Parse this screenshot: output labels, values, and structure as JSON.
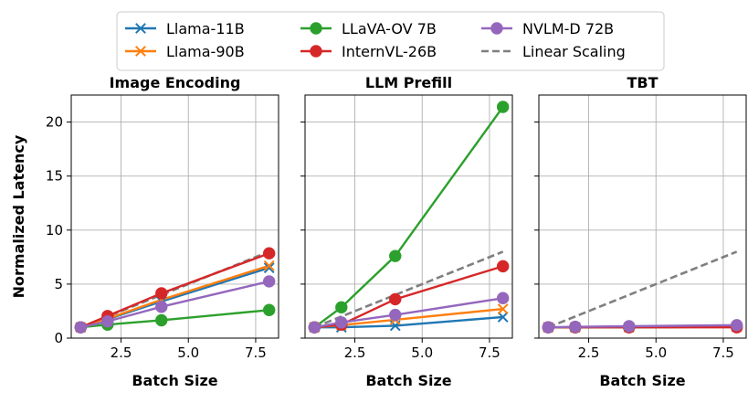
{
  "chart_data": {
    "type": "line",
    "ylabel": "Normalized Latency",
    "xlabel": "Batch Size",
    "x": [
      1,
      2,
      4,
      8
    ],
    "xlim": [
      0.65,
      8.35
    ],
    "ylim": [
      0,
      22.5
    ],
    "xticks": [
      2.5,
      5.0,
      7.5
    ],
    "xtick_labels": [
      "2.5",
      "5.0",
      "7.5"
    ],
    "yticks": [
      0,
      5,
      10,
      15,
      20
    ],
    "ytick_labels": [
      "0",
      "5",
      "10",
      "15",
      "20"
    ],
    "grid": true,
    "legend": {
      "placement": "top",
      "entries": [
        {
          "key": "llama11",
          "label": "Llama-11B",
          "color": "#1f77b4",
          "marker": "x",
          "style": "solid"
        },
        {
          "key": "llama90",
          "label": "Llama-90B",
          "color": "#ff7f0e",
          "marker": "x",
          "style": "solid"
        },
        {
          "key": "llava",
          "label": "LLaVA-OV 7B",
          "color": "#2ca02c",
          "marker": "o",
          "style": "solid"
        },
        {
          "key": "internvl",
          "label": "InternVL-26B",
          "color": "#d62728",
          "marker": "o",
          "style": "solid"
        },
        {
          "key": "nvlm",
          "label": "NVLM-D 72B",
          "color": "#9467bd",
          "marker": "o",
          "style": "solid"
        },
        {
          "key": "linear",
          "label": "Linear Scaling",
          "color": "#7f7f7f",
          "marker": "none",
          "style": "dashed"
        }
      ]
    },
    "panels": [
      {
        "title": "Image Encoding",
        "series": [
          {
            "key": "linear",
            "values": [
              1,
              2,
              4,
              8
            ]
          },
          {
            "key": "llama11",
            "values": [
              1.0,
              1.75,
              3.4,
              6.5
            ]
          },
          {
            "key": "llama90",
            "values": [
              1.0,
              1.8,
              3.55,
              6.7
            ]
          },
          {
            "key": "llava",
            "values": [
              1.0,
              1.25,
              1.65,
              2.6
            ]
          },
          {
            "key": "internvl",
            "values": [
              1.0,
              2.05,
              4.15,
              7.85
            ]
          },
          {
            "key": "nvlm",
            "values": [
              1.0,
              1.55,
              2.9,
              5.25
            ]
          }
        ]
      },
      {
        "title": "LLM Prefill",
        "series": [
          {
            "key": "linear",
            "values": [
              1,
              2,
              4,
              8
            ]
          },
          {
            "key": "llama11",
            "values": [
              1.0,
              1.0,
              1.15,
              1.95
            ]
          },
          {
            "key": "llama90",
            "values": [
              1.0,
              1.2,
              1.7,
              2.7
            ]
          },
          {
            "key": "llava",
            "values": [
              1.0,
              2.85,
              7.6,
              21.4
            ]
          },
          {
            "key": "internvl",
            "values": [
              1.0,
              1.25,
              3.6,
              6.65
            ]
          },
          {
            "key": "nvlm",
            "values": [
              1.0,
              1.45,
              2.15,
              3.7
            ]
          }
        ]
      },
      {
        "title": "TBT",
        "series": [
          {
            "key": "linear",
            "values": [
              1,
              2,
              4,
              8
            ]
          },
          {
            "key": "llama11",
            "values": [
              1.0,
              1.0,
              1.0,
              1.05
            ]
          },
          {
            "key": "llama90",
            "values": [
              1.0,
              1.0,
              1.0,
              1.05
            ]
          },
          {
            "key": "llava",
            "values": [
              1.0,
              1.0,
              1.0,
              1.05
            ]
          },
          {
            "key": "internvl",
            "values": [
              1.0,
              1.0,
              1.0,
              1.0
            ]
          },
          {
            "key": "nvlm",
            "values": [
              1.0,
              1.05,
              1.1,
              1.2
            ]
          }
        ]
      }
    ]
  }
}
